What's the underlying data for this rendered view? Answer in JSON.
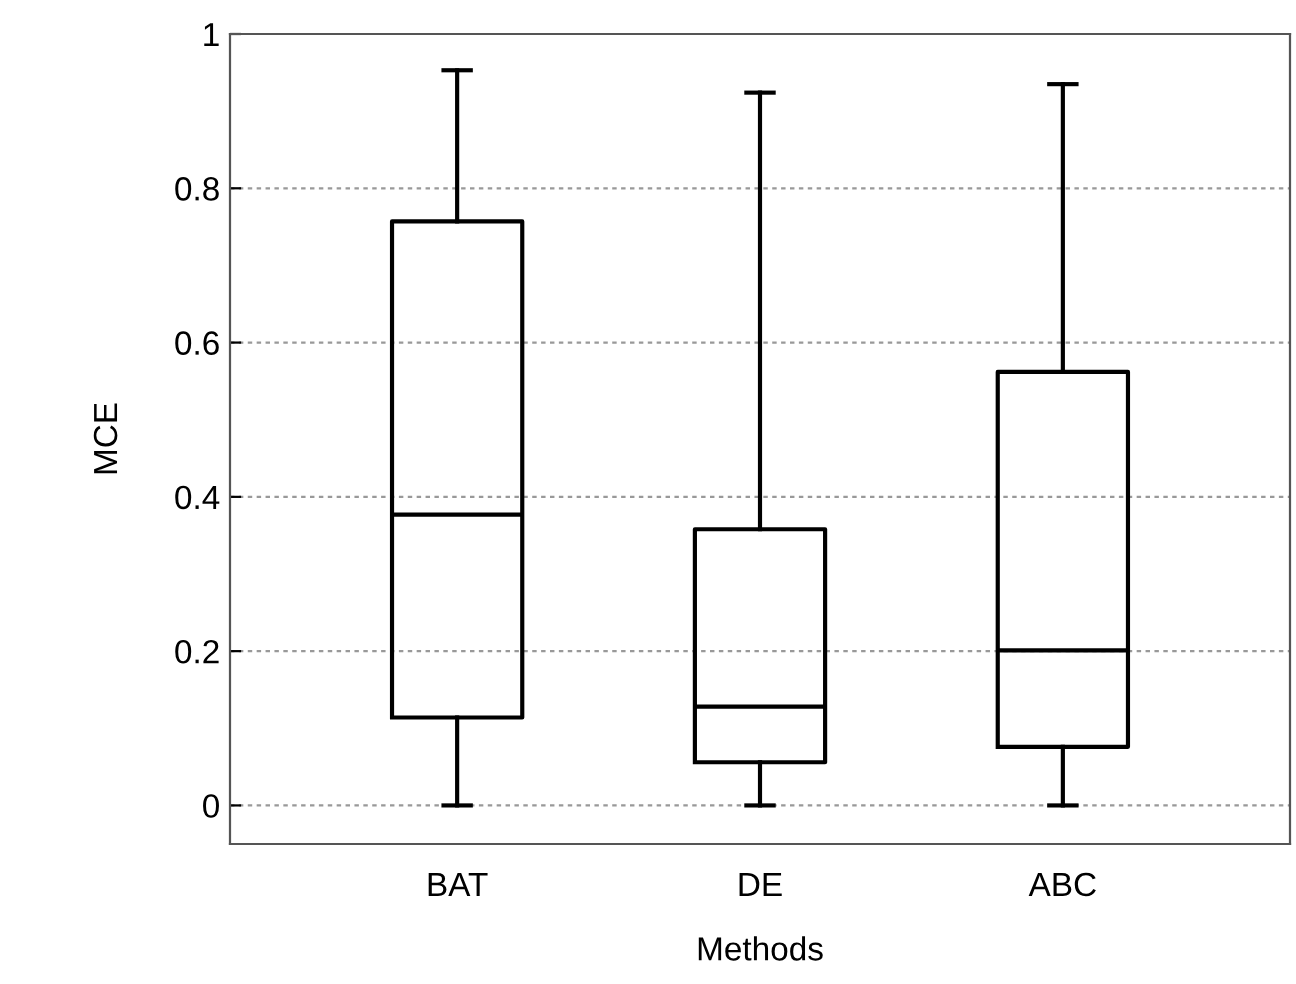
{
  "chart_data": {
    "type": "box",
    "xlabel": "Methods",
    "ylabel": "MCE",
    "categories": [
      "BAT",
      "DE",
      "ABC"
    ],
    "boxes": [
      {
        "low": 0,
        "q1": 0.114,
        "median": 0.377,
        "q3": 0.757,
        "high": 0.953
      },
      {
        "low": 0,
        "q1": 0.056,
        "median": 0.128,
        "q3": 0.358,
        "high": 0.924
      },
      {
        "low": 0,
        "q1": 0.076,
        "median": 0.201,
        "q3": 0.562,
        "high": 0.935
      }
    ],
    "color": "#000000",
    "ylim": [
      -0.05,
      1
    ],
    "yticks": [
      0,
      0.2,
      0.4,
      0.6,
      0.8,
      1
    ],
    "grid": "y"
  }
}
